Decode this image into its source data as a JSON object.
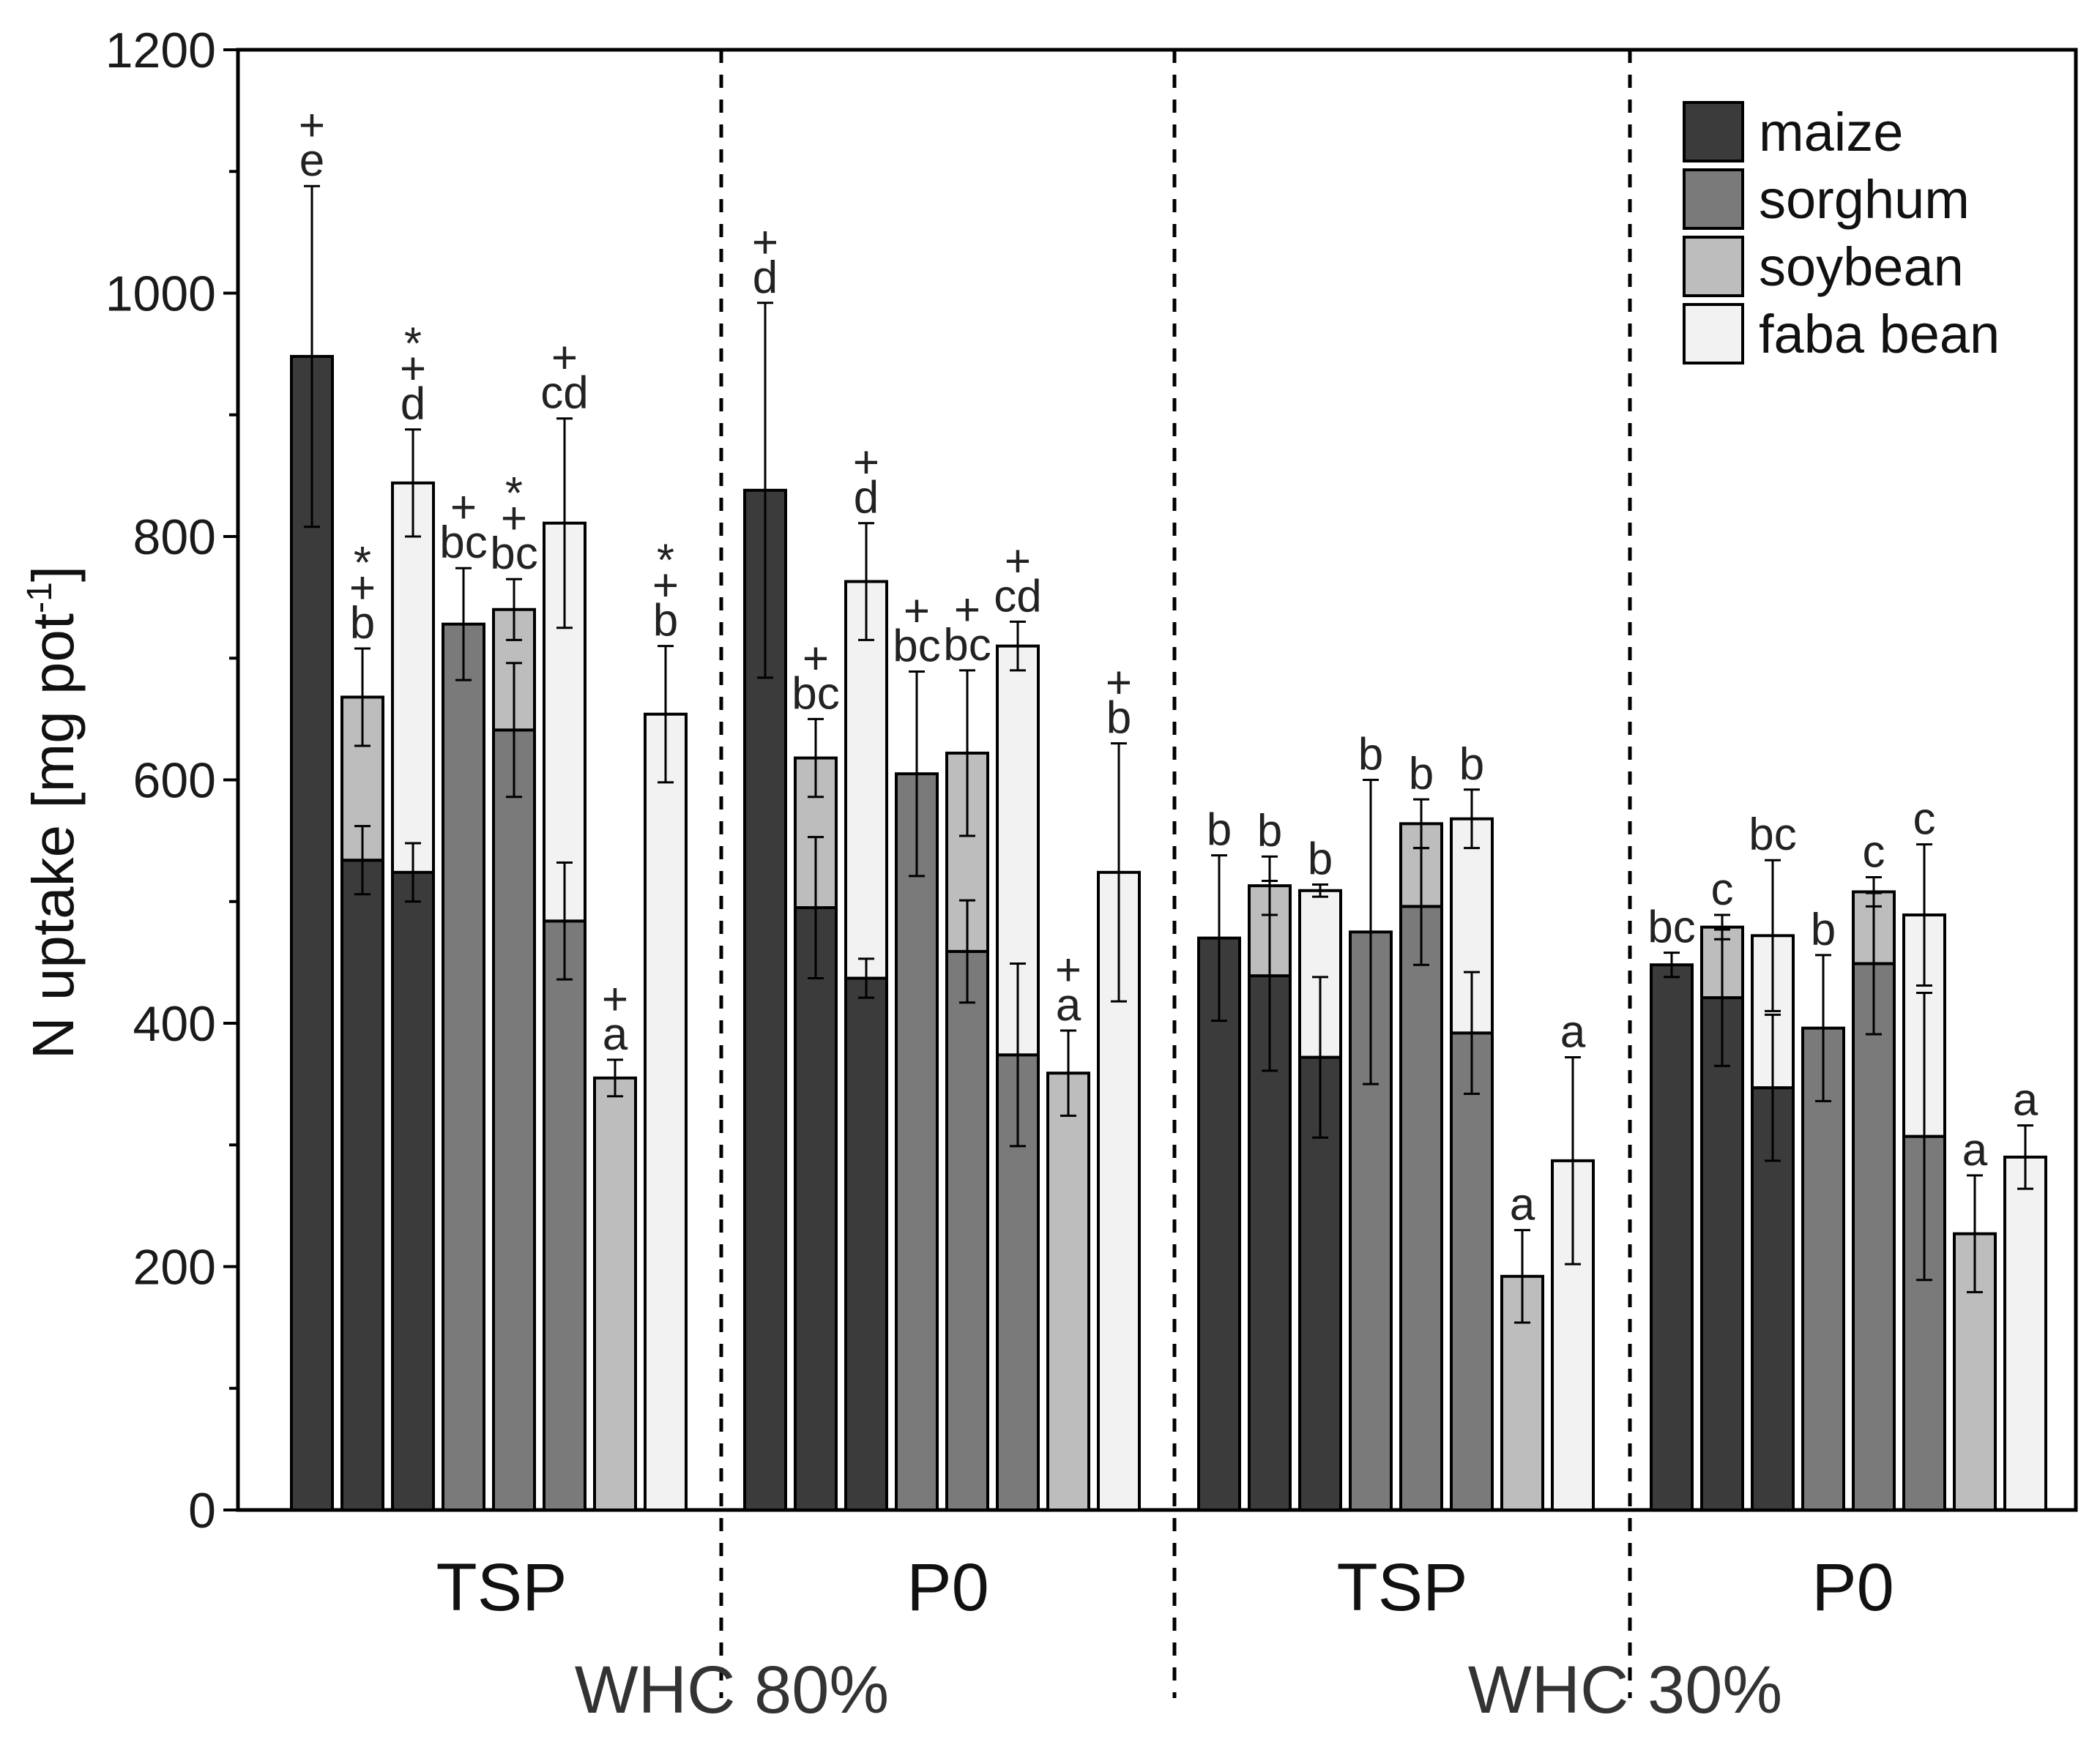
{
  "chart_data": {
    "type": "bar",
    "title": "",
    "ylabel": "N uptake [mg pot",
    "ylabel_sup": "-1",
    "ylabel_close": "]",
    "ylim": [
      0,
      1200
    ],
    "yticks": [
      0,
      200,
      400,
      600,
      800,
      1000,
      1200
    ],
    "grid": false,
    "legend_position": "top-right",
    "groups": [
      {
        "whc": "WHC 80%",
        "p": "TSP"
      },
      {
        "whc": "WHC 80%",
        "p": "P0"
      },
      {
        "whc": "WHC 30%",
        "p": "TSP"
      },
      {
        "whc": "WHC 30%",
        "p": "P0"
      }
    ],
    "whc_labels": [
      "WHC 80%",
      "WHC 30%"
    ],
    "p_labels": [
      "TSP",
      "P0",
      "TSP",
      "P0"
    ],
    "legend": [
      {
        "name": "maize",
        "color": "#3b3b3b"
      },
      {
        "name": "sorghum",
        "color": "#7a7a7a"
      },
      {
        "name": "soybean",
        "color": "#bdbdbd"
      },
      {
        "name": "faba bean",
        "color": "#f2f2f2"
      }
    ],
    "bars": [
      {
        "group": 0,
        "slot": 0,
        "segments": [
          {
            "crop": "maize",
            "value": 948,
            "err": 140
          }
        ],
        "label": "e",
        "marks": [
          "+"
        ]
      },
      {
        "group": 0,
        "slot": 1,
        "segments": [
          {
            "crop": "maize",
            "value": 534,
            "err": 28
          },
          {
            "crop": "soybean",
            "value": 134,
            "err": 40
          }
        ],
        "label": "b",
        "marks": [
          "+",
          "*"
        ]
      },
      {
        "group": 0,
        "slot": 2,
        "segments": [
          {
            "crop": "maize",
            "value": 524,
            "err": 24
          },
          {
            "crop": "faba bean",
            "value": 320,
            "err": 44
          }
        ],
        "label": "d",
        "marks": [
          "+",
          "*"
        ]
      },
      {
        "group": 0,
        "slot": 3,
        "segments": [
          {
            "crop": "sorghum",
            "value": 728,
            "err": 46
          }
        ],
        "label": "bc",
        "marks": [
          "+"
        ]
      },
      {
        "group": 0,
        "slot": 4,
        "segments": [
          {
            "crop": "sorghum",
            "value": 641,
            "err": 55
          },
          {
            "crop": "soybean",
            "value": 99,
            "err": 25
          }
        ],
        "label": "bc",
        "marks": [
          "+",
          "*"
        ]
      },
      {
        "group": 0,
        "slot": 5,
        "segments": [
          {
            "crop": "sorghum",
            "value": 484,
            "err": 48
          },
          {
            "crop": "faba bean",
            "value": 327,
            "err": 86
          }
        ],
        "label": "cd",
        "marks": [
          "+"
        ]
      },
      {
        "group": 0,
        "slot": 6,
        "segments": [
          {
            "crop": "soybean",
            "value": 355,
            "err": 15
          }
        ],
        "label": "a",
        "marks": [
          "+"
        ]
      },
      {
        "group": 0,
        "slot": 7,
        "segments": [
          {
            "crop": "faba bean",
            "value": 654,
            "err": 56
          }
        ],
        "label": "b",
        "marks": [
          "+",
          "*"
        ]
      },
      {
        "group": 1,
        "slot": 0,
        "segments": [
          {
            "crop": "maize",
            "value": 838,
            "err": 154
          }
        ],
        "label": "d",
        "marks": [
          "+"
        ]
      },
      {
        "group": 1,
        "slot": 1,
        "segments": [
          {
            "crop": "maize",
            "value": 495,
            "err": 58
          },
          {
            "crop": "soybean",
            "value": 123,
            "err": 32
          }
        ],
        "label": "bc",
        "marks": [
          "+"
        ]
      },
      {
        "group": 1,
        "slot": 2,
        "segments": [
          {
            "crop": "maize",
            "value": 437,
            "err": 16
          },
          {
            "crop": "faba bean",
            "value": 326,
            "err": 48
          }
        ],
        "label": "d",
        "marks": [
          "+"
        ]
      },
      {
        "group": 1,
        "slot": 3,
        "segments": [
          {
            "crop": "sorghum",
            "value": 605,
            "err": 84
          }
        ],
        "label": "bc",
        "marks": [
          "+"
        ]
      },
      {
        "group": 1,
        "slot": 4,
        "segments": [
          {
            "crop": "sorghum",
            "value": 459,
            "err": 42
          },
          {
            "crop": "soybean",
            "value": 163,
            "err": 68
          }
        ],
        "label": "bc",
        "marks": [
          "+"
        ]
      },
      {
        "group": 1,
        "slot": 5,
        "segments": [
          {
            "crop": "sorghum",
            "value": 374,
            "err": 75
          },
          {
            "crop": "faba bean",
            "value": 336,
            "err": 20
          }
        ],
        "label": "cd",
        "marks": [
          "+"
        ]
      },
      {
        "group": 1,
        "slot": 6,
        "segments": [
          {
            "crop": "soybean",
            "value": 359,
            "err": 35
          }
        ],
        "label": "a",
        "marks": [
          "+"
        ]
      },
      {
        "group": 1,
        "slot": 7,
        "segments": [
          {
            "crop": "faba bean",
            "value": 524,
            "err": 106
          }
        ],
        "label": "b",
        "marks": [
          "+"
        ]
      },
      {
        "group": 2,
        "slot": 0,
        "segments": [
          {
            "crop": "maize",
            "value": 470,
            "err": 68
          }
        ],
        "label": "b",
        "marks": []
      },
      {
        "group": 2,
        "slot": 1,
        "segments": [
          {
            "crop": "maize",
            "value": 439,
            "err": 78
          },
          {
            "crop": "soybean",
            "value": 74,
            "err": 24
          }
        ],
        "label": "b",
        "marks": []
      },
      {
        "group": 2,
        "slot": 2,
        "segments": [
          {
            "crop": "maize",
            "value": 372,
            "err": 66
          },
          {
            "crop": "faba bean",
            "value": 137,
            "err": 5
          }
        ],
        "label": "b",
        "marks": []
      },
      {
        "group": 2,
        "slot": 3,
        "segments": [
          {
            "crop": "sorghum",
            "value": 475,
            "err": 125
          }
        ],
        "label": "b",
        "marks": []
      },
      {
        "group": 2,
        "slot": 4,
        "segments": [
          {
            "crop": "sorghum",
            "value": 496,
            "err": 48
          },
          {
            "crop": "soybean",
            "value": 68,
            "err": 20
          }
        ],
        "label": "b",
        "marks": []
      },
      {
        "group": 2,
        "slot": 5,
        "segments": [
          {
            "crop": "sorghum",
            "value": 392,
            "err": 50
          },
          {
            "crop": "faba bean",
            "value": 176,
            "err": 24
          }
        ],
        "label": "b",
        "marks": []
      },
      {
        "group": 2,
        "slot": 6,
        "segments": [
          {
            "crop": "soybean",
            "value": 192,
            "err": 38
          }
        ],
        "label": "a",
        "marks": []
      },
      {
        "group": 2,
        "slot": 7,
        "segments": [
          {
            "crop": "faba bean",
            "value": 287,
            "err": 85
          }
        ],
        "label": "a",
        "marks": []
      },
      {
        "group": 3,
        "slot": 0,
        "segments": [
          {
            "crop": "maize",
            "value": 448,
            "err": 10
          }
        ],
        "label": "bc",
        "marks": []
      },
      {
        "group": 3,
        "slot": 1,
        "segments": [
          {
            "crop": "maize",
            "value": 421,
            "err": 56
          },
          {
            "crop": "soybean",
            "value": 58,
            "err": 10
          }
        ],
        "label": "c",
        "marks": []
      },
      {
        "group": 3,
        "slot": 2,
        "segments": [
          {
            "crop": "maize",
            "value": 347,
            "err": 60
          },
          {
            "crop": "faba bean",
            "value": 125,
            "err": 62
          }
        ],
        "label": "bc",
        "marks": []
      },
      {
        "group": 3,
        "slot": 3,
        "segments": [
          {
            "crop": "sorghum",
            "value": 396,
            "err": 60
          }
        ],
        "label": "b",
        "marks": []
      },
      {
        "group": 3,
        "slot": 4,
        "segments": [
          {
            "crop": "sorghum",
            "value": 449,
            "err": 58
          },
          {
            "crop": "soybean",
            "value": 59,
            "err": 12
          }
        ],
        "label": "c",
        "marks": []
      },
      {
        "group": 3,
        "slot": 5,
        "segments": [
          {
            "crop": "sorghum",
            "value": 307,
            "err": 118
          },
          {
            "crop": "faba bean",
            "value": 182,
            "err": 58
          }
        ],
        "label": "c",
        "marks": []
      },
      {
        "group": 3,
        "slot": 6,
        "segments": [
          {
            "crop": "soybean",
            "value": 227,
            "err": 48
          }
        ],
        "label": "a",
        "marks": []
      },
      {
        "group": 3,
        "slot": 7,
        "segments": [
          {
            "crop": "faba bean",
            "value": 290,
            "err": 26
          }
        ],
        "label": "a",
        "marks": []
      }
    ]
  }
}
